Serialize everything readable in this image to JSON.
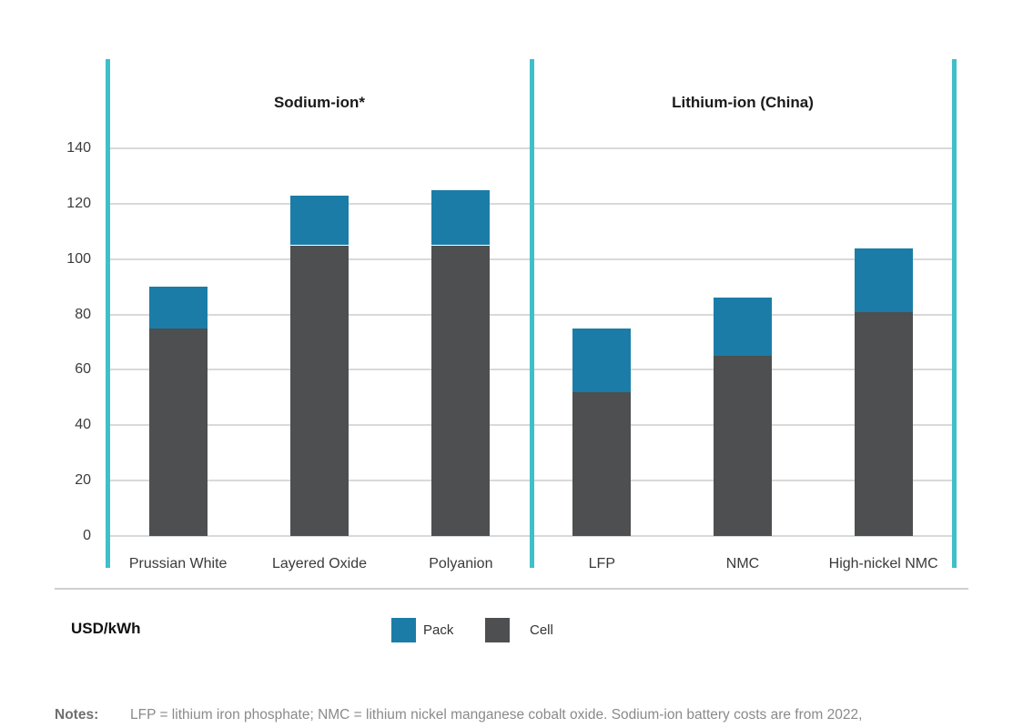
{
  "chart_data": {
    "type": "bar",
    "stacked": true,
    "title": "",
    "unit_label": "USD/kWh",
    "ylim": [
      0,
      140
    ],
    "yticks": [
      0,
      20,
      40,
      60,
      80,
      100,
      120,
      140
    ],
    "grid": true,
    "legend_position": "bottom",
    "panels": [
      {
        "title": "Sodium-ion*",
        "categories": [
          "Prussian White",
          "Layered Oxide",
          "Polyanion"
        ],
        "series": [
          {
            "name": "Cell",
            "values": [
              75,
              105,
              105
            ]
          },
          {
            "name": "Pack",
            "values": [
              15,
              18,
              20
            ]
          }
        ],
        "totals": [
          90,
          123,
          125
        ]
      },
      {
        "title": "Lithium-ion (China)",
        "categories": [
          "LFP",
          "NMC",
          "High-nickel NMC"
        ],
        "series": [
          {
            "name": "Cell",
            "values": [
              52,
              65,
              81
            ]
          },
          {
            "name": "Pack",
            "values": [
              23,
              21,
              23
            ]
          }
        ],
        "totals": [
          75,
          86,
          104
        ]
      }
    ],
    "legend": [
      {
        "label": "Pack",
        "color": "#1b7da7"
      },
      {
        "label": "Cell",
        "color": "#4d4f50"
      }
    ],
    "colors": {
      "pack": "#1b7da7",
      "cell": "#4d4f50",
      "panel_divider": "#3fc0c8",
      "gridline": "#d9d9d9"
    }
  },
  "notes": {
    "label": "Notes:",
    "text": "LFP = lithium iron phosphate; NMC = lithium nickel manganese cobalt oxide. Sodium-ion battery costs are from 2022,"
  }
}
